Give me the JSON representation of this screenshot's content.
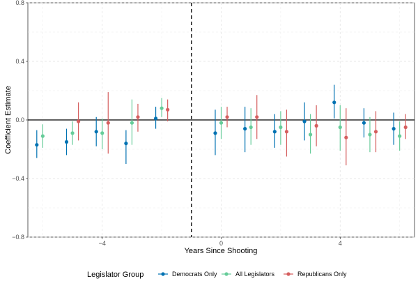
{
  "chart_data": {
    "type": "scatter",
    "subtype": "coefficient-plot-with-error-bars",
    "xlabel": "Years Since Shooting",
    "ylabel": "Coefficient Estimate",
    "xlim": [
      -6.5,
      6.5
    ],
    "ylim": [
      -0.8,
      0.8
    ],
    "x_ticks": [
      -4,
      0,
      4
    ],
    "x_tick_labels": [
      "−4",
      "0",
      "4"
    ],
    "y_ticks": [
      -0.8,
      -0.4,
      0.0,
      0.4,
      0.8
    ],
    "y_tick_labels": [
      "−0.8",
      "−0.4",
      "0.0",
      "0.4",
      "0.8"
    ],
    "reference_line_y": 0,
    "reference_line_x": -1,
    "grid": true,
    "legend": {
      "title": "Legislator Group",
      "position": "bottom"
    },
    "series": [
      {
        "name": "Democrats Only",
        "color": "#0072B2",
        "offset": -0.2,
        "points": [
          {
            "x": -6,
            "y": -0.17,
            "lo": -0.26,
            "hi": -0.07
          },
          {
            "x": -5,
            "y": -0.15,
            "lo": -0.24,
            "hi": -0.06
          },
          {
            "x": -4,
            "y": -0.08,
            "lo": -0.18,
            "hi": 0.02
          },
          {
            "x": -3,
            "y": -0.16,
            "lo": -0.3,
            "hi": -0.07
          },
          {
            "x": -2,
            "y": 0.01,
            "lo": -0.06,
            "hi": 0.09
          },
          {
            "x": 0,
            "y": -0.09,
            "lo": -0.24,
            "hi": 0.07
          },
          {
            "x": 1,
            "y": -0.06,
            "lo": -0.22,
            "hi": 0.09
          },
          {
            "x": 2,
            "y": -0.08,
            "lo": -0.19,
            "hi": 0.04
          },
          {
            "x": 3,
            "y": -0.01,
            "lo": -0.14,
            "hi": 0.12
          },
          {
            "x": 4,
            "y": 0.12,
            "lo": 0.01,
            "hi": 0.24
          },
          {
            "x": 5,
            "y": -0.02,
            "lo": -0.12,
            "hi": 0.08
          },
          {
            "x": 6,
            "y": -0.06,
            "lo": -0.17,
            "hi": 0.05
          }
        ]
      },
      {
        "name": "All Legislators",
        "color": "#66CC99",
        "offset": 0.0,
        "points": [
          {
            "x": -6,
            "y": -0.11,
            "lo": -0.19,
            "hi": -0.03
          },
          {
            "x": -5,
            "y": -0.09,
            "lo": -0.17,
            "hi": -0.01
          },
          {
            "x": -4,
            "y": -0.09,
            "lo": -0.2,
            "hi": 0.01
          },
          {
            "x": -3,
            "y": -0.02,
            "lo": -0.17,
            "hi": 0.14
          },
          {
            "x": -2,
            "y": 0.08,
            "lo": 0.02,
            "hi": 0.15
          },
          {
            "x": 0,
            "y": -0.02,
            "lo": -0.13,
            "hi": 0.09
          },
          {
            "x": 1,
            "y": -0.05,
            "lo": -0.17,
            "hi": 0.08
          },
          {
            "x": 2,
            "y": -0.05,
            "lo": -0.17,
            "hi": 0.06
          },
          {
            "x": 3,
            "y": -0.1,
            "lo": -0.23,
            "hi": 0.04
          },
          {
            "x": 4,
            "y": -0.05,
            "lo": -0.21,
            "hi": 0.1
          },
          {
            "x": 5,
            "y": -0.1,
            "lo": -0.22,
            "hi": 0.02
          },
          {
            "x": 6,
            "y": -0.11,
            "lo": -0.21,
            "hi": -0.01
          }
        ]
      },
      {
        "name": "Republicans Only",
        "color": "#D55E5E",
        "offset": 0.2,
        "points": [
          {
            "x": -6,
            "y": null,
            "lo": null,
            "hi": null
          },
          {
            "x": -5,
            "y": -0.01,
            "lo": -0.14,
            "hi": 0.12
          },
          {
            "x": -4,
            "y": -0.02,
            "lo": -0.23,
            "hi": 0.19
          },
          {
            "x": -3,
            "y": 0.02,
            "lo": -0.08,
            "hi": 0.11
          },
          {
            "x": -2,
            "y": 0.07,
            "lo": -0.01,
            "hi": 0.14
          },
          {
            "x": 0,
            "y": 0.02,
            "lo": -0.05,
            "hi": 0.09
          },
          {
            "x": 1,
            "y": 0.02,
            "lo": -0.13,
            "hi": 0.17
          },
          {
            "x": 2,
            "y": -0.08,
            "lo": -0.25,
            "hi": 0.07
          },
          {
            "x": 3,
            "y": -0.04,
            "lo": -0.18,
            "hi": 0.1
          },
          {
            "x": 4,
            "y": -0.12,
            "lo": -0.31,
            "hi": 0.08
          },
          {
            "x": 5,
            "y": -0.08,
            "lo": -0.22,
            "hi": 0.06
          },
          {
            "x": 6,
            "y": -0.05,
            "lo": -0.13,
            "hi": 0.04
          }
        ]
      }
    ]
  }
}
